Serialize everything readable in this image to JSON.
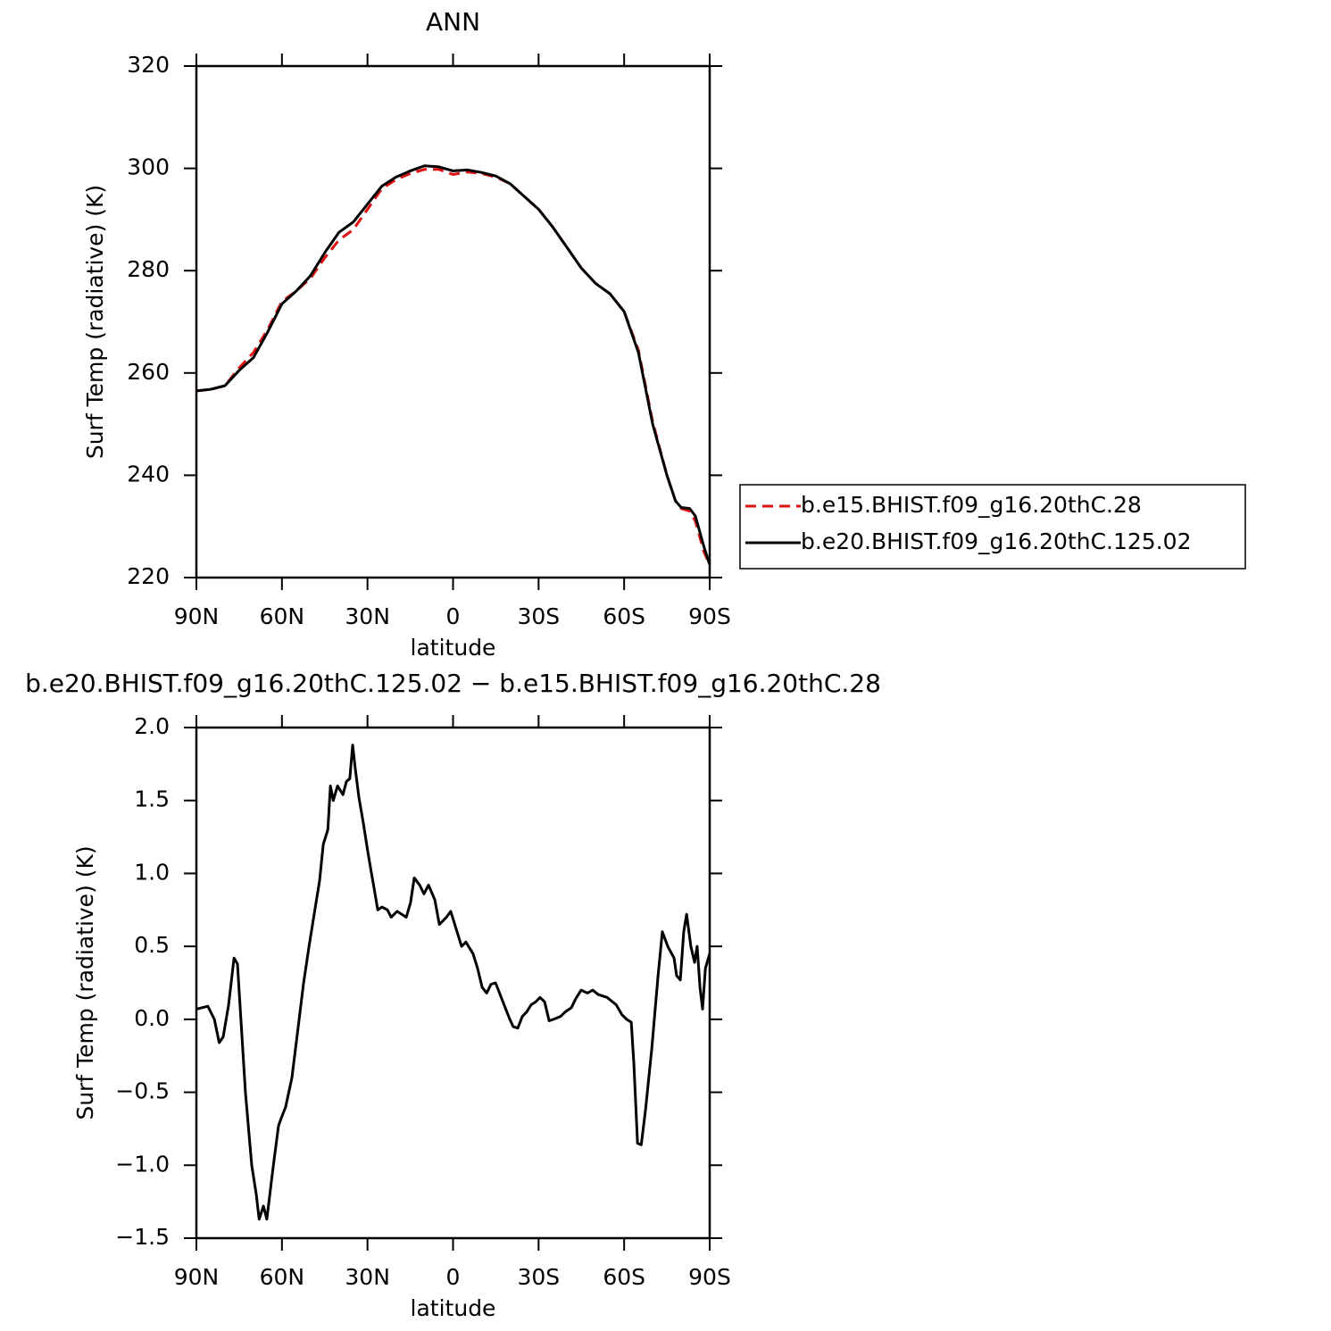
{
  "chart_data": [
    {
      "type": "line",
      "title": "ANN",
      "xlabel": "latitude",
      "ylabel": "Surf Temp (radiative) (K)",
      "xlim": [
        90,
        -90
      ],
      "ylim": [
        220,
        320
      ],
      "xticks": [
        {
          "value": 90,
          "label": "90N"
        },
        {
          "value": 60,
          "label": "60N"
        },
        {
          "value": 30,
          "label": "30N"
        },
        0,
        {
          "value": -30,
          "label": "30S"
        },
        {
          "value": -60,
          "label": "60S"
        },
        {
          "value": -90,
          "label": "90S"
        }
      ],
      "yticks": [
        220,
        240,
        260,
        280,
        300,
        320
      ],
      "legend": "right",
      "x": [
        90,
        85,
        80,
        75,
        70,
        65,
        60,
        55,
        50,
        45,
        40,
        35,
        30,
        25,
        20,
        15,
        10,
        5,
        0,
        -5,
        -10,
        -15,
        -20,
        -25,
        -30,
        -35,
        -40,
        -45,
        -50,
        -55,
        -60,
        -65,
        -70,
        -75,
        -78,
        -80,
        -83,
        -85,
        -88,
        -90
      ],
      "series": [
        {
          "name": "b.e15.BHIST.f09_g16.20thC.28",
          "color": "#e01010",
          "dashed": true,
          "values": [
            256.5,
            256.8,
            257.5,
            261,
            264,
            268.5,
            274,
            276,
            278.5,
            282.5,
            286,
            288,
            292,
            296,
            297.8,
            299,
            299.8,
            299.8,
            298.8,
            299.3,
            299,
            298.3,
            297,
            294.5,
            292,
            288.5,
            284.5,
            280.5,
            277.5,
            275.5,
            272,
            264.5,
            250.5,
            240,
            235,
            233.5,
            233,
            231,
            225,
            222.5
          ]
        },
        {
          "name": "b.e20.BHIST.f09_g16.20thC.125.02",
          "color": "#000000",
          "dashed": false,
          "values": [
            256.5,
            256.8,
            257.5,
            260.5,
            263,
            268,
            273.5,
            276,
            279,
            283.5,
            287.5,
            289.5,
            293,
            296.5,
            298.3,
            299.5,
            300.5,
            300.3,
            299.5,
            299.7,
            299.2,
            298.5,
            297,
            294.5,
            292,
            288.5,
            284.5,
            280.5,
            277.5,
            275.5,
            272,
            264,
            250,
            240,
            235,
            233.7,
            233.5,
            232,
            226,
            222.5
          ]
        }
      ]
    },
    {
      "type": "line",
      "title": "b.e20.BHIST.f09_g16.20thC.125.02 − b.e15.BHIST.f09_g16.20thC.28",
      "xlabel": "latitude",
      "ylabel": "Surf Temp (radiative) (K)",
      "xlim": [
        90,
        -90
      ],
      "ylim": [
        -1.5,
        2
      ],
      "xticks": [
        {
          "value": 90,
          "label": "90N"
        },
        {
          "value": 60,
          "label": "60N"
        },
        {
          "value": 30,
          "label": "30N"
        },
        0,
        {
          "value": -30,
          "label": "30S"
        },
        {
          "value": -60,
          "label": "60S"
        },
        {
          "value": -90,
          "label": "90S"
        }
      ],
      "yticks": [
        {
          "value": -1.5,
          "label": "−1.5"
        },
        {
          "value": -1,
          "label": "−1.0"
        },
        {
          "value": -0.5,
          "label": "−0.5"
        },
        {
          "value": 0,
          "label": "0.0"
        },
        0.5,
        {
          "value": 1,
          "label": "1.0"
        },
        1.5,
        {
          "value": 2,
          "label": "2.0"
        }
      ],
      "x": [
        90,
        86,
        83.7,
        82,
        80.6,
        78.7,
        76.8,
        75.6,
        72.8,
        70.6,
        69,
        68,
        66.5,
        65.3,
        63,
        61.2,
        60.3,
        58.7,
        56.5,
        54.6,
        52.4,
        50.5,
        48.7,
        46.8,
        45.5,
        43.9,
        43,
        42,
        40.5,
        38.6,
        37.4,
        36.2,
        35.2,
        34.3,
        33,
        31.5,
        29.9,
        28.6,
        27.7,
        26.4,
        24.9,
        23,
        21.7,
        19.6,
        16.4,
        14.9,
        13.6,
        11.7,
        10.2,
        8.6,
        6.4,
        4.8,
        2.3,
        0.8,
        -1.4,
        -3,
        -4.5,
        -7,
        -8.6,
        -10.2,
        -11.8,
        -13.3,
        -14.9,
        -16.5,
        -18.3,
        -19.9,
        -21.1,
        -22.7,
        -24.3,
        -25.8,
        -27.4,
        -29,
        -30.5,
        -32.1,
        -33.7,
        -35.2,
        -37.7,
        -39.3,
        -41.5,
        -43,
        -44.9,
        -47.1,
        -49,
        -50.9,
        -54,
        -57.2,
        -59.3,
        -60.9,
        -62.5,
        -63.4,
        -64.7,
        -66,
        -67.5,
        -69.7,
        -71.9,
        -73.4,
        -75.3,
        -77.5,
        -78.4,
        -79.7,
        -80.9,
        -81.9,
        -83.4,
        -84.7,
        -85.6,
        -86.6,
        -87.5,
        -88.5,
        -90
      ],
      "series": [
        {
          "color": "#000000",
          "dashed": false,
          "values": [
            0.07,
            0.09,
            0,
            -0.16,
            -0.12,
            0.1,
            0.42,
            0.38,
            -0.5,
            -1,
            -1.2,
            -1.37,
            -1.28,
            -1.37,
            -1,
            -0.73,
            -0.68,
            -0.6,
            -0.4,
            -0.1,
            0.25,
            0.5,
            0.72,
            0.95,
            1.2,
            1.3,
            1.6,
            1.5,
            1.6,
            1.54,
            1.63,
            1.65,
            1.88,
            1.72,
            1.52,
            1.35,
            1.15,
            1,
            0.9,
            0.75,
            0.77,
            0.75,
            0.7,
            0.74,
            0.7,
            0.8,
            0.97,
            0.92,
            0.86,
            0.92,
            0.82,
            0.65,
            0.7,
            0.74,
            0.6,
            0.5,
            0.53,
            0.45,
            0.35,
            0.22,
            0.18,
            0.24,
            0.25,
            0.17,
            0.08,
            0,
            -0.05,
            -0.06,
            0.02,
            0.05,
            0.1,
            0.12,
            0.15,
            0.12,
            -0.01,
            0,
            0.02,
            0.05,
            0.08,
            0.14,
            0.2,
            0.18,
            0.2,
            0.17,
            0.15,
            0.1,
            0.03,
            0,
            -0.02,
            -0.3,
            -0.85,
            -0.86,
            -0.62,
            -0.2,
            0.3,
            0.6,
            0.5,
            0.42,
            0.3,
            0.27,
            0.6,
            0.72,
            0.5,
            0.39,
            0.5,
            0.22,
            0.07,
            0.35,
            0.45
          ]
        }
      ]
    }
  ]
}
